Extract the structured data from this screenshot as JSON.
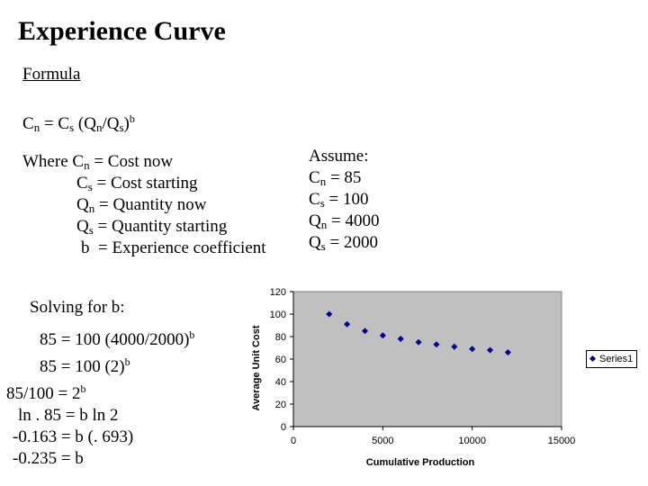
{
  "title": "Experience Curve",
  "formula_label": "Formula",
  "formula": {
    "lhs": "C",
    "lhs_sub": "n",
    "eq": " = C",
    "cs_sub": "s",
    "paren_open": " (Q",
    "qn_sub": "n",
    "slash": "/Q",
    "qs_sub": "s",
    "paren_close": ")",
    "exp": "b"
  },
  "definitions": [
    {
      "prefix": "Where C",
      "sub": "n",
      "text": " = Cost now"
    },
    {
      "prefix": "C",
      "sub": "s",
      "text": " = Cost starting"
    },
    {
      "prefix": "Q",
      "sub": "n",
      "text": " = Quantity now"
    },
    {
      "prefix": "Q",
      "sub": "s",
      "text": " = Quantity starting"
    },
    {
      "prefix": "b",
      "sub": "",
      "text": "  = Experience coefficient"
    }
  ],
  "assume": {
    "heading": "Assume:",
    "items": [
      {
        "prefix": "C",
        "sub": "n",
        "text": " = 85"
      },
      {
        "prefix": "C",
        "sub": "s",
        "text": " = 100"
      },
      {
        "prefix": "Q",
        "sub": "n",
        "text": " = 4000"
      },
      {
        "prefix": "Q",
        "sub": "s",
        "text": " = 2000"
      }
    ]
  },
  "solving": {
    "heading": "Solving for b:",
    "step1": "85 = 100 (4000/2000)",
    "step1_exp": "b",
    "step2": "85 = 100 (2)",
    "step2_exp": "b",
    "step3": "85/100 = 2",
    "step3_exp": "b",
    "step4": "ln . 85 = b ln 2",
    "step5": "-0.163 = b (. 693)",
    "step6": "-0.235 = b"
  },
  "chart_data": {
    "type": "scatter",
    "title": "",
    "xlabel": "Cumulative Production",
    "ylabel": "Average Unit Cost",
    "xlim": [
      0,
      15000
    ],
    "ylim": [
      0,
      120
    ],
    "xticks": [
      0,
      5000,
      10000,
      15000
    ],
    "yticks": [
      0,
      20,
      40,
      60,
      80,
      100,
      120
    ],
    "grid": false,
    "plot_background": "#c0c0c0",
    "marker_color": "#00008b",
    "legend": "right",
    "series": [
      {
        "name": "Series1",
        "points": [
          [
            2000,
            100
          ],
          [
            3000,
            91
          ],
          [
            4000,
            85
          ],
          [
            5000,
            81
          ],
          [
            6000,
            78
          ],
          [
            7000,
            75
          ],
          [
            8000,
            73
          ],
          [
            9000,
            71
          ],
          [
            10000,
            69
          ],
          [
            11000,
            68
          ],
          [
            12000,
            66
          ]
        ]
      }
    ]
  }
}
